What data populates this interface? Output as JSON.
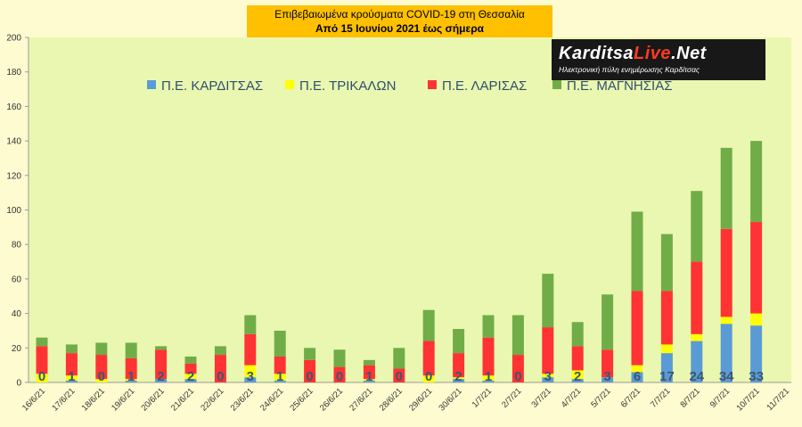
{
  "title": {
    "line1": "Επιβεβαιωμένα κρούσματα COVID-19 στη Θεσσαλία",
    "line2": "Από 15 Ιουνίου 2021 έως σήμερα"
  },
  "logo": {
    "main_a": "Karditsa",
    "main_b": "Live",
    "main_c": ".Net",
    "sub": "Ηλεκτρονική πύλη ενημέρωσης Καρδίτσας"
  },
  "chart_data": {
    "type": "bar",
    "stacked": true,
    "ylim": [
      0,
      200
    ],
    "yticks": [
      0,
      20,
      40,
      60,
      80,
      100,
      120,
      140,
      160,
      180,
      200
    ],
    "grid": false,
    "legend_position": "top",
    "categories": [
      "16/6/21",
      "17/6/21",
      "18/6/21",
      "19/6/21",
      "20/6/21",
      "21/6/21",
      "22/6/21",
      "23/6/21",
      "24/6/21",
      "25/6/21",
      "26/6/21",
      "27/6/21",
      "28/6/21",
      "29/6/21",
      "30/6/21",
      "1/7/21",
      "2/7/21",
      "3/7/21",
      "4/7/21",
      "5/7/21",
      "6/7/21",
      "7/7/21",
      "8/7/21",
      "9/7/21",
      "10/7/21",
      "11/7/21"
    ],
    "series": [
      {
        "name": "Π.Ε. ΚΑΡΔΙΤΣΑΣ",
        "color": "#5b9bd5",
        "values": [
          0,
          1,
          0,
          1,
          2,
          2,
          0,
          3,
          1,
          0,
          0,
          1,
          0,
          0,
          2,
          1,
          0,
          3,
          2,
          3,
          6,
          17,
          24,
          34,
          33,
          0
        ]
      },
      {
        "name": "Π.Ε. ΤΡΙΚΑΛΩΝ",
        "color": "#ffff00",
        "values": [
          5,
          3,
          2,
          1,
          0,
          3,
          0,
          7,
          4,
          0,
          0,
          1,
          0,
          4,
          1,
          3,
          0,
          2,
          5,
          0,
          4,
          5,
          4,
          4,
          7,
          0
        ]
      },
      {
        "name": "Π.Ε. ΛΑΡΙΣΑΣ",
        "color": "#ff3333",
        "values": [
          16,
          13,
          14,
          12,
          17,
          6,
          16,
          18,
          10,
          13,
          9,
          8,
          8,
          20,
          14,
          22,
          16,
          27,
          14,
          16,
          43,
          31,
          42,
          51,
          53,
          0
        ]
      },
      {
        "name": "Π.Ε. ΜΑΓΝΗΣΙΑΣ",
        "color": "#70ad47",
        "values": [
          5,
          5,
          7,
          9,
          2,
          4,
          5,
          11,
          15,
          7,
          10,
          3,
          12,
          18,
          14,
          13,
          23,
          31,
          14,
          32,
          46,
          33,
          41,
          47,
          47,
          0
        ]
      }
    ],
    "data_labels": [
      "0",
      "1",
      "0",
      "1",
      "2",
      "2",
      "0",
      "3",
      "1",
      "0",
      "0",
      "1",
      "0",
      "0",
      "2",
      "1",
      "0",
      "3",
      "2",
      "3",
      "6",
      "17",
      "24",
      "34",
      "33",
      ""
    ]
  }
}
